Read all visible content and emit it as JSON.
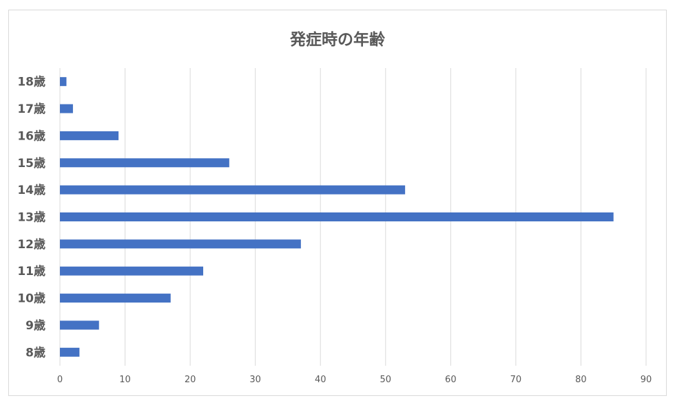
{
  "chart_data": {
    "type": "bar",
    "orientation": "horizontal",
    "title": "発症時の年齢",
    "categories": [
      "8歳",
      "9歳",
      "10歳",
      "11歳",
      "12歳",
      "13歳",
      "14歳",
      "15歳",
      "16歳",
      "17歳",
      "18歳"
    ],
    "values": [
      3,
      6,
      17,
      22,
      37,
      85,
      53,
      26,
      9,
      2,
      1
    ],
    "xlim": [
      0,
      90
    ],
    "xticks": [
      0,
      10,
      20,
      30,
      40,
      50,
      60,
      70,
      80,
      90
    ],
    "grid": true,
    "legend": "none",
    "bar_color": "#4472c4"
  }
}
